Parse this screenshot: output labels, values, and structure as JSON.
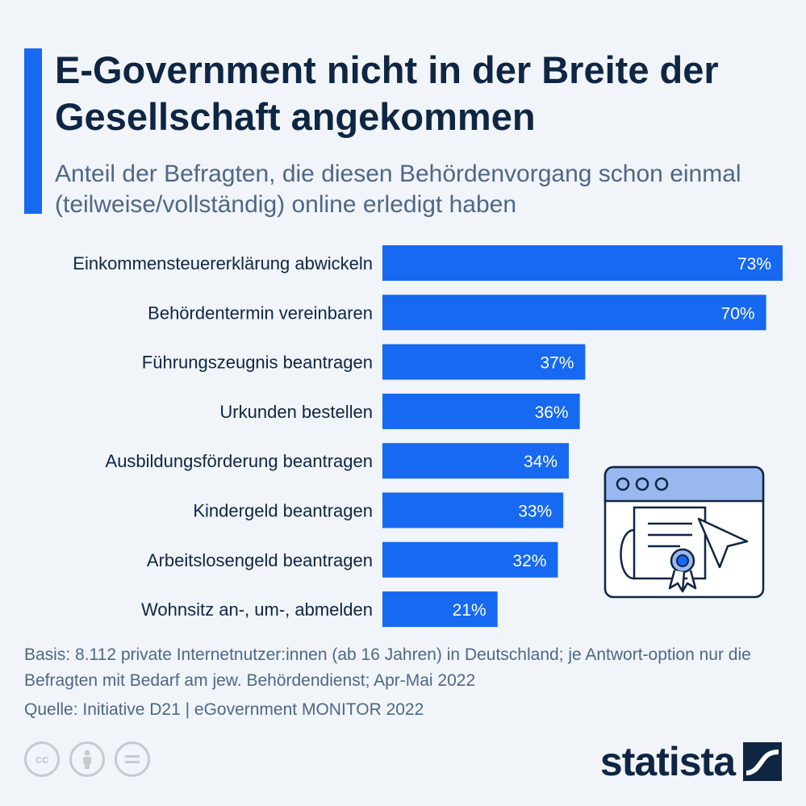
{
  "header": {
    "title": "E-Government nicht in der Breite der Gesellschaft angekommen",
    "subtitle": "Anteil der Befragten, die diesen Behördenvorgang schon einmal (teilweise/vollständig) online erledigt haben"
  },
  "chart_data": {
    "type": "bar",
    "orientation": "horizontal",
    "categories": [
      "Einkommensteuererklärung abwickeln",
      "Behördentermin vereinbaren",
      "Führungszeugnis beantragen",
      "Urkunden bestellen",
      "Ausbildungsförderung beantragen",
      "Kindergeld beantragen",
      "Arbeitslosengeld beantragen",
      "Wohnsitz an-, um-, abmelden"
    ],
    "values": [
      73,
      70,
      37,
      36,
      34,
      33,
      32,
      21
    ],
    "value_labels": [
      "73%",
      "70%",
      "37%",
      "36%",
      "34%",
      "33%",
      "32%",
      "21%"
    ],
    "xlim": [
      0,
      73
    ],
    "grid": false,
    "bar_color": "#1669f0"
  },
  "notes": {
    "basis": "Basis: 8.112 private Internetnutzer:innen (ab 16 Jahren) in Deutschland; je Antwort-option nur die Befragten mit Bedarf am jew. Behördendienst; Apr-Mai 2022",
    "source": "Quelle: Initiative D21 | eGovernment MONITOR 2022"
  },
  "license_icons": [
    "cc-icon",
    "by-icon",
    "nd-icon"
  ],
  "brand": {
    "name": "statista",
    "logo_icon": "statista-logo-icon"
  },
  "colors": {
    "accent": "#1669f0",
    "title": "#0f2643",
    "muted": "#4f6787",
    "background": "#f1f4f9"
  }
}
